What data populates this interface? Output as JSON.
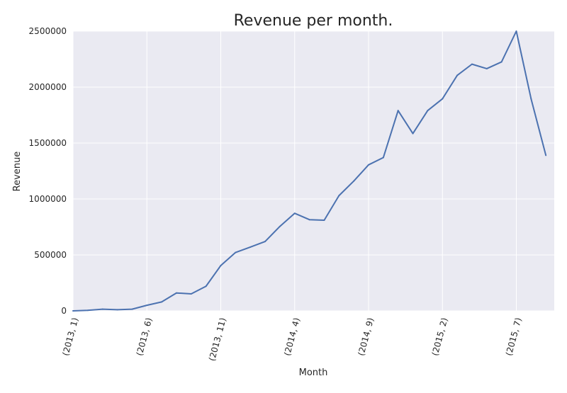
{
  "chart_data": {
    "type": "line",
    "title": "Revenue per month.",
    "xlabel": "Month",
    "ylabel": "Revenue",
    "ylim": [
      0,
      2500000
    ],
    "y_ticks": [
      0,
      500000,
      1000000,
      1500000,
      2000000,
      2500000
    ],
    "y_tick_labels": [
      "0",
      "500000",
      "1000000",
      "1500000",
      "2000000",
      "2500000"
    ],
    "x_tick_labels": [
      "(2013, 1)",
      "(2013, 6)",
      "(2013, 11)",
      "(2014, 4)",
      "(2014, 9)",
      "(2015, 2)",
      "(2015, 7)"
    ],
    "x": [
      "(2013, 1)",
      "(2013, 2)",
      "(2013, 3)",
      "(2013, 4)",
      "(2013, 5)",
      "(2013, 6)",
      "(2013, 7)",
      "(2013, 8)",
      "(2013, 9)",
      "(2013, 10)",
      "(2013, 11)",
      "(2013, 12)",
      "(2014, 1)",
      "(2014, 2)",
      "(2014, 3)",
      "(2014, 4)",
      "(2014, 5)",
      "(2014, 6)",
      "(2014, 7)",
      "(2014, 8)",
      "(2014, 9)",
      "(2014, 10)",
      "(2014, 11)",
      "(2014, 12)",
      "(2015, 1)",
      "(2015, 2)",
      "(2015, 3)",
      "(2015, 4)",
      "(2015, 5)",
      "(2015, 6)",
      "(2015, 7)",
      "(2015, 8)",
      "(2015, 9)"
    ],
    "series": [
      {
        "values": [
          0,
          5000,
          15000,
          10000,
          15000,
          50000,
          80000,
          160000,
          152000,
          220000,
          405000,
          522000,
          570000,
          620000,
          755000,
          872000,
          815000,
          810000,
          1030000,
          1160000,
          1305000,
          1370000,
          1790000,
          1585000,
          1790000,
          1895000,
          2105000,
          2205000,
          2165000,
          2225000,
          2500000,
          1895000,
          1390000
        ]
      }
    ],
    "grid": true,
    "colors": {
      "line": "#4c72b0",
      "plot_background": "#eaeaf2",
      "grid": "#ffffff",
      "page_background": "#ffffff"
    }
  }
}
